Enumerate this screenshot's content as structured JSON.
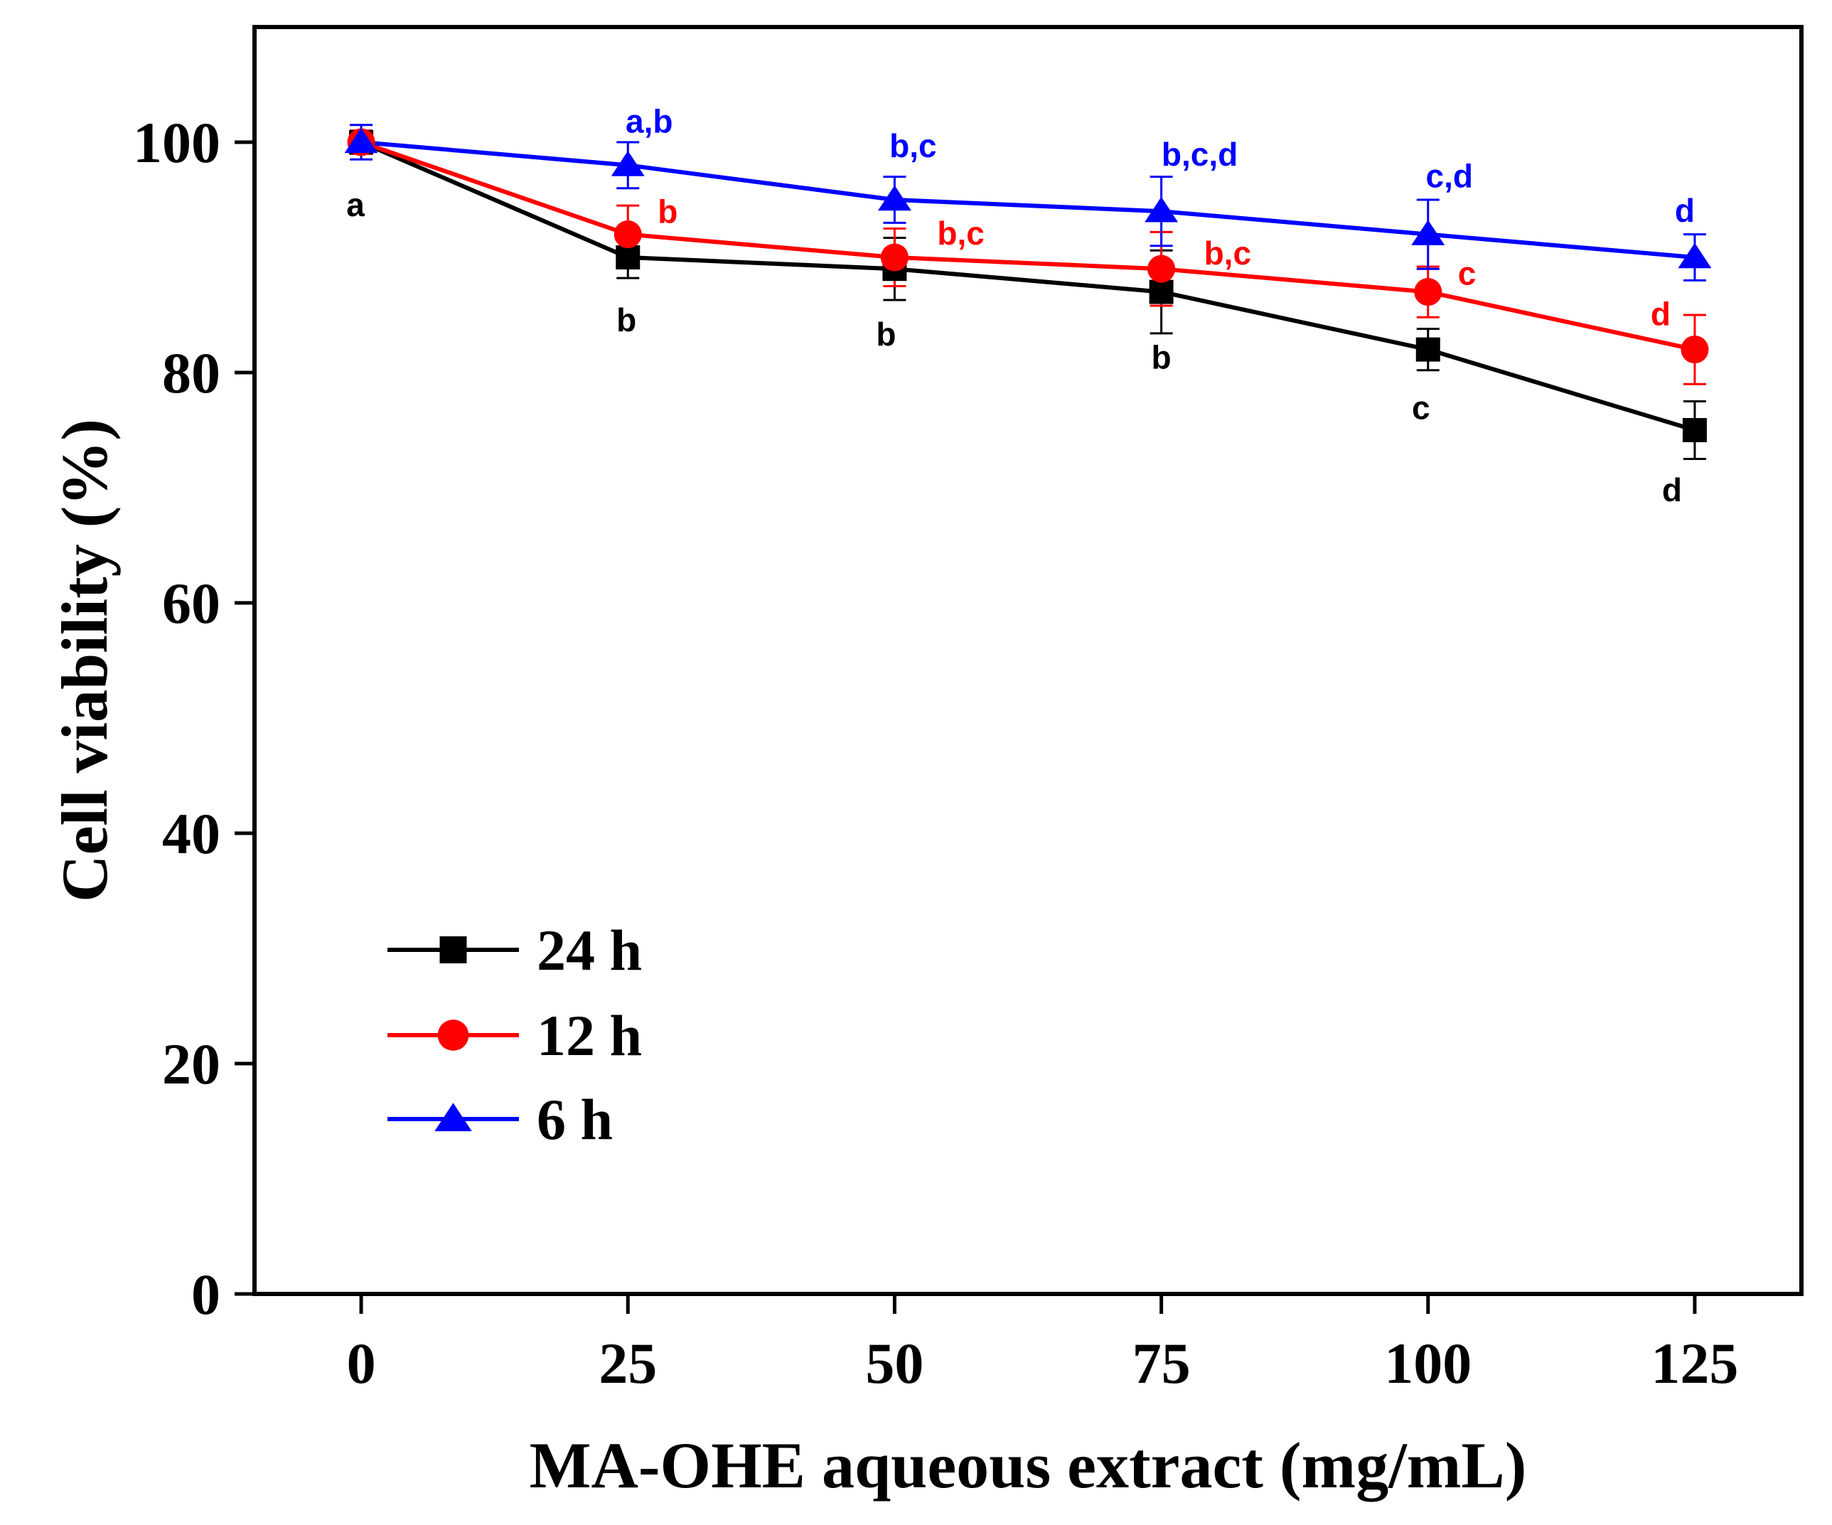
{
  "chart_data": {
    "type": "line",
    "xlabel": "MA-OHE aqueous extract (mg/mL)",
    "ylabel": "Cell viability (%)",
    "x": [
      0,
      25,
      50,
      75,
      100,
      125
    ],
    "xlim": [
      -10,
      135
    ],
    "ylim": [
      0,
      110
    ],
    "x_ticks": [
      0,
      25,
      50,
      75,
      100,
      125
    ],
    "y_ticks": [
      0,
      20,
      40,
      60,
      80,
      100
    ],
    "grid": false,
    "legend_position": "bottom-left",
    "series": [
      {
        "name": "24 h",
        "color": "#000000",
        "marker": "square",
        "values": [
          100,
          90,
          89,
          87,
          82,
          75
        ],
        "errors": [
          1.0,
          1.8,
          2.7,
          3.6,
          1.8,
          2.5
        ],
        "annotations": [
          "a",
          "b",
          "b",
          "b",
          "c",
          "d"
        ]
      },
      {
        "name": "12 h",
        "color": "#ff0000",
        "marker": "circle",
        "values": [
          100,
          92,
          90,
          89,
          87,
          82
        ],
        "errors": [
          1.0,
          2.5,
          2.5,
          3.2,
          2.2,
          3.0
        ],
        "annotations": [
          "",
          "b",
          "b,c",
          "b,c",
          "c",
          "d"
        ]
      },
      {
        "name": "6 h",
        "color": "#0000ff",
        "marker": "triangle",
        "values": [
          100,
          98,
          95,
          94,
          92,
          90
        ],
        "errors": [
          1.5,
          2.0,
          2.0,
          3.0,
          3.0,
          2.0
        ],
        "annotations": [
          "",
          "a,b",
          "b,c",
          "b,c,d",
          "c,d",
          "d"
        ]
      }
    ]
  }
}
